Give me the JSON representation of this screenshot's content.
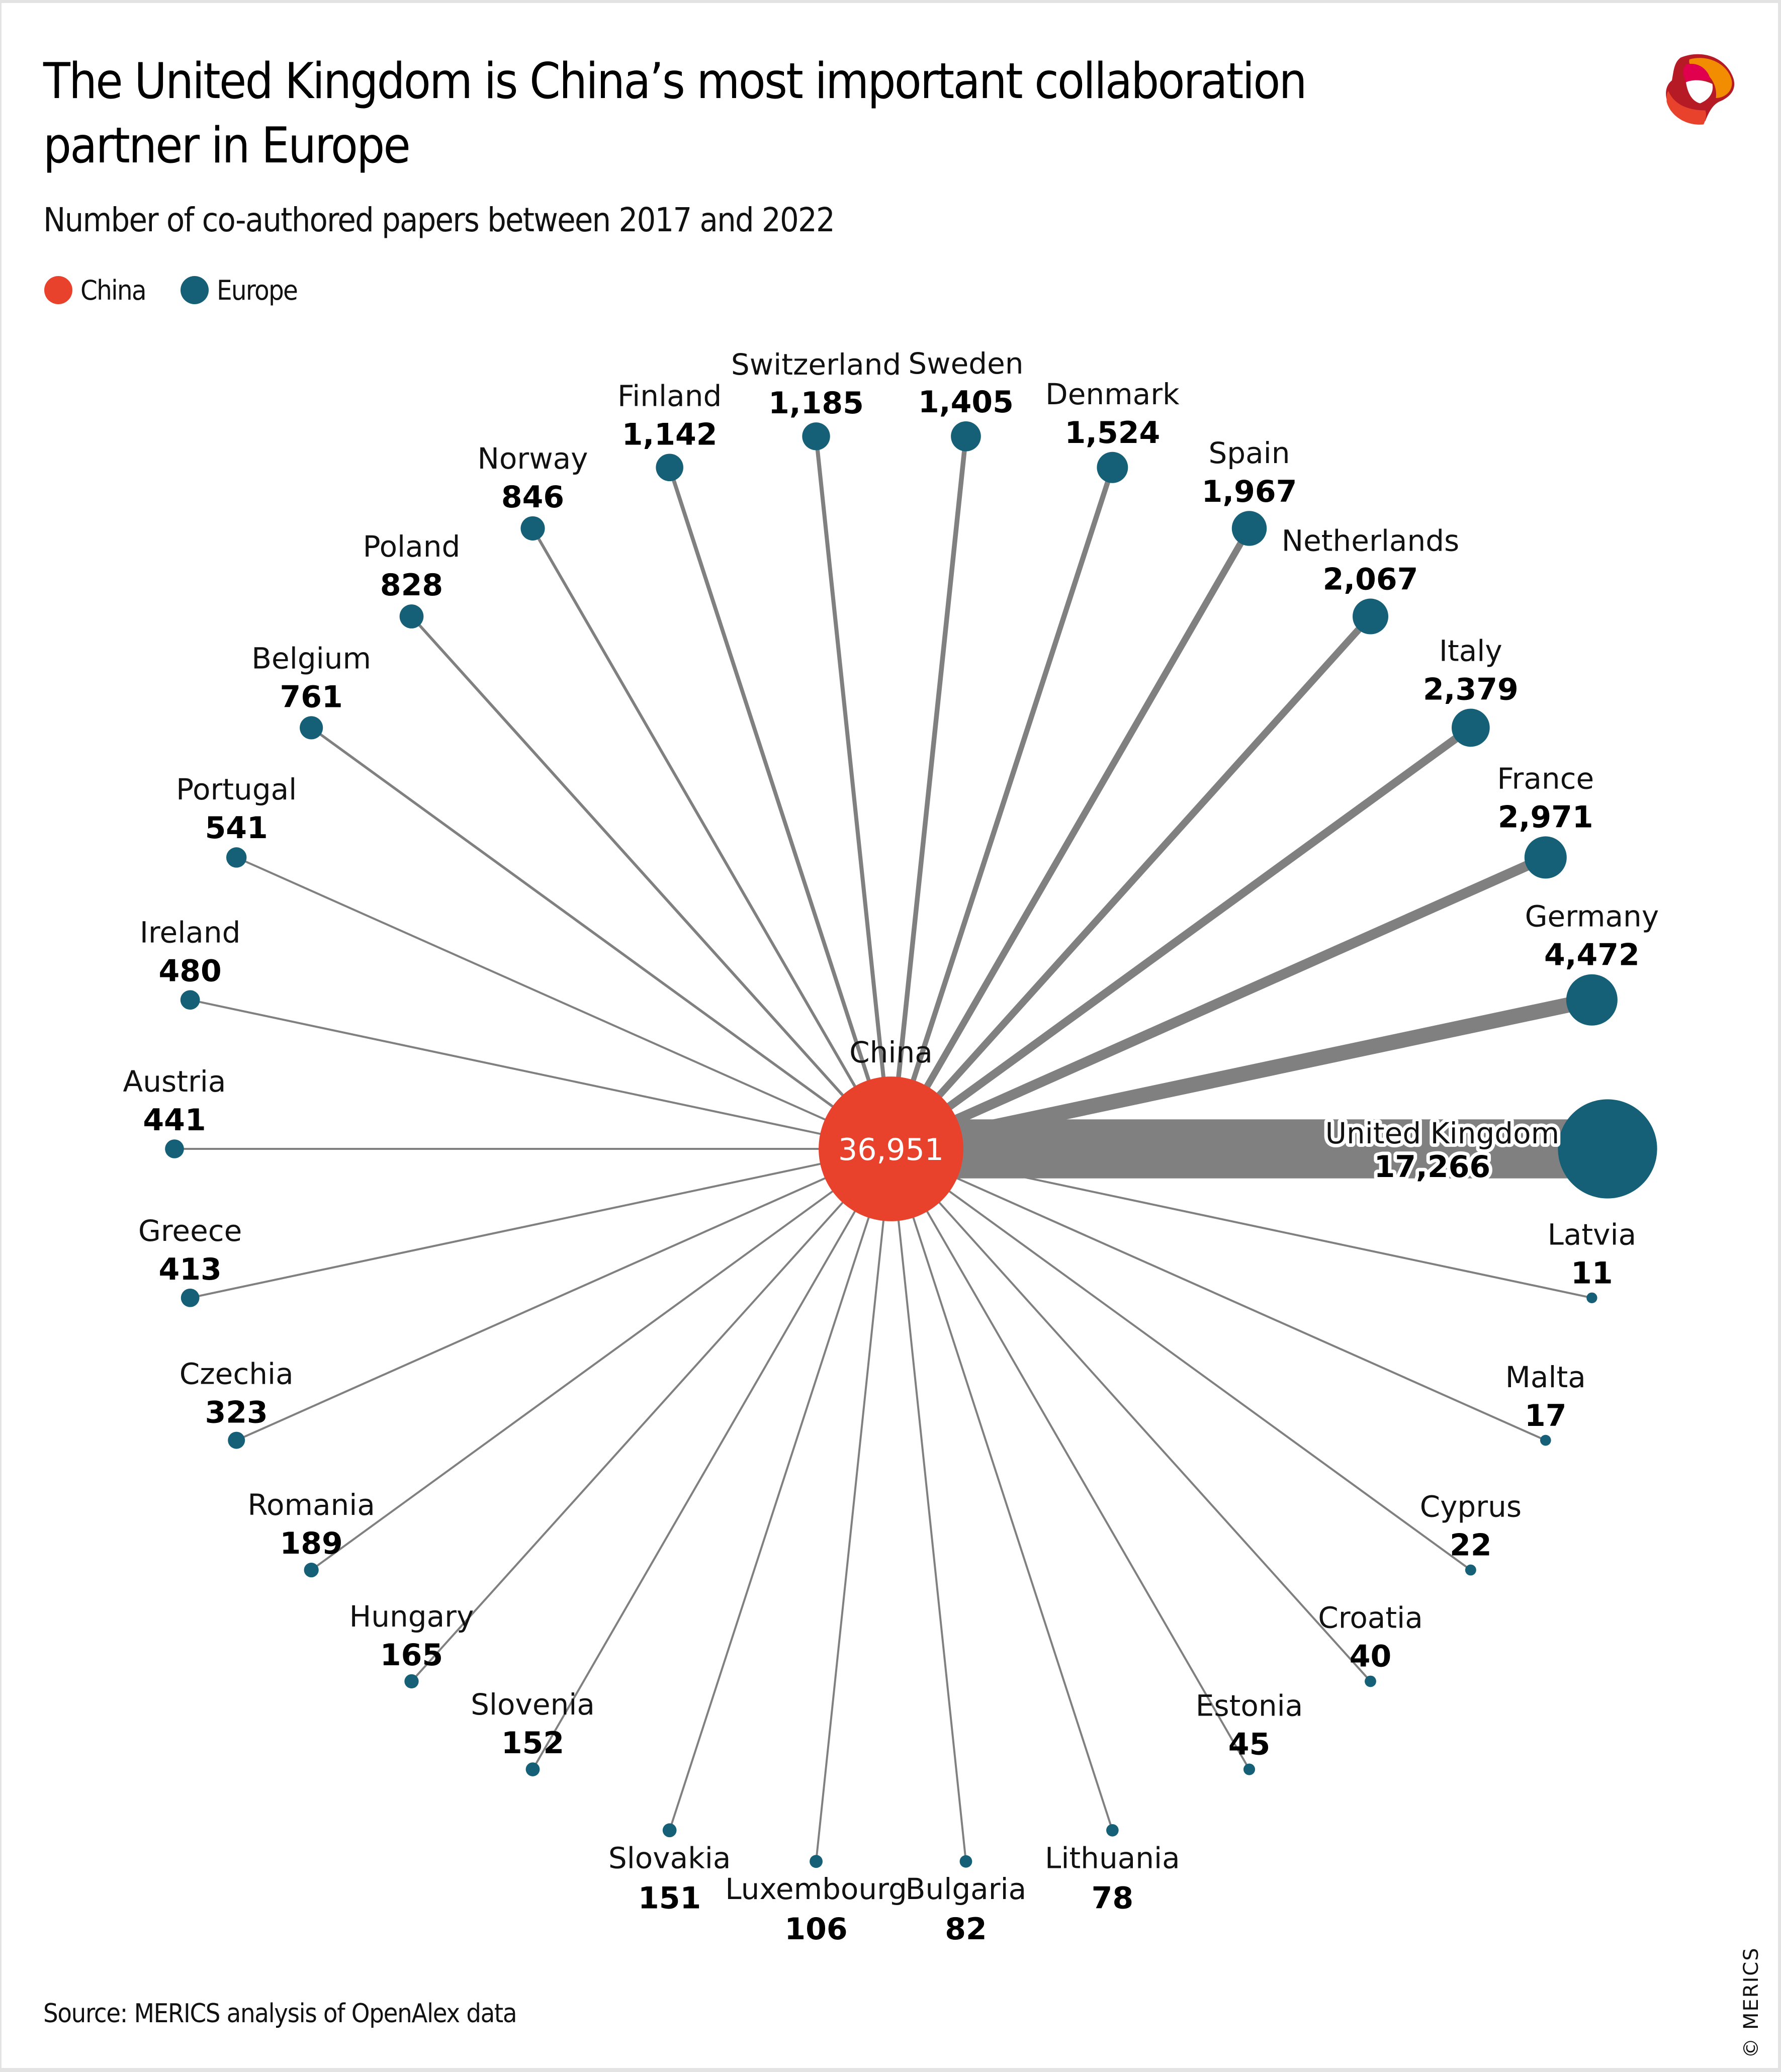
{
  "title": "The United Kingdom is China’s most important collaboration partner in Europe",
  "subtitle": "Number of co-authored papers between 2017 and 2022",
  "legend": [
    {
      "label": "China",
      "color": "#e8412c"
    },
    {
      "label": "Europe",
      "color": "#156077"
    }
  ],
  "source": "Source: MERICS analysis of OpenAlex data",
  "copyright": "© MERICS",
  "logo": {
    "name": "merics-logo",
    "colors": [
      "#b51a25",
      "#e0004d",
      "#f28c00",
      "#e8412c"
    ]
  },
  "colors": {
    "china": "#e8412c",
    "europe": "#156077",
    "edge": "#808080",
    "text": "#000000"
  },
  "chart_data": {
    "type": "network",
    "title": "The United Kingdom is China’s most important collaboration partner in Europe",
    "subtitle": "Number of co-authored papers between 2017 and 2022",
    "layout": "radial, clockwise order starting at right (east) going counter-clockwise",
    "center": {
      "name": "China",
      "value": 36951,
      "value_label": "36,951"
    },
    "nodes": [
      {
        "name": "United Kingdom",
        "value": 17266,
        "value_label": "17,266"
      },
      {
        "name": "Germany",
        "value": 4472,
        "value_label": "4,472"
      },
      {
        "name": "France",
        "value": 2971,
        "value_label": "2,971"
      },
      {
        "name": "Italy",
        "value": 2379,
        "value_label": "2,379"
      },
      {
        "name": "Netherlands",
        "value": 2067,
        "value_label": "2,067"
      },
      {
        "name": "Spain",
        "value": 1967,
        "value_label": "1,967"
      },
      {
        "name": "Denmark",
        "value": 1524,
        "value_label": "1,524"
      },
      {
        "name": "Sweden",
        "value": 1405,
        "value_label": "1,405"
      },
      {
        "name": "Switzerland",
        "value": 1185,
        "value_label": "1,185"
      },
      {
        "name": "Finland",
        "value": 1142,
        "value_label": "1,142"
      },
      {
        "name": "Norway",
        "value": 846,
        "value_label": "846"
      },
      {
        "name": "Poland",
        "value": 828,
        "value_label": "828"
      },
      {
        "name": "Belgium",
        "value": 761,
        "value_label": "761"
      },
      {
        "name": "Portugal",
        "value": 541,
        "value_label": "541"
      },
      {
        "name": "Ireland",
        "value": 480,
        "value_label": "480"
      },
      {
        "name": "Austria",
        "value": 441,
        "value_label": "441"
      },
      {
        "name": "Greece",
        "value": 413,
        "value_label": "413"
      },
      {
        "name": "Czechia",
        "value": 323,
        "value_label": "323"
      },
      {
        "name": "Romania",
        "value": 189,
        "value_label": "189"
      },
      {
        "name": "Hungary",
        "value": 165,
        "value_label": "165"
      },
      {
        "name": "Slovenia",
        "value": 152,
        "value_label": "152"
      },
      {
        "name": "Slovakia",
        "value": 151,
        "value_label": "151"
      },
      {
        "name": "Luxembourg",
        "value": 106,
        "value_label": "106"
      },
      {
        "name": "Bulgaria",
        "value": 82,
        "value_label": "82"
      },
      {
        "name": "Lithuania",
        "value": 78,
        "value_label": "78"
      },
      {
        "name": "Estonia",
        "value": 45,
        "value_label": "45"
      },
      {
        "name": "Croatia",
        "value": 40,
        "value_label": "40"
      },
      {
        "name": "Cyprus",
        "value": 22,
        "value_label": "22"
      },
      {
        "name": "Malta",
        "value": 17,
        "value_label": "17"
      },
      {
        "name": "Latvia",
        "value": 11,
        "value_label": "11"
      }
    ],
    "legend": [
      "China",
      "Europe"
    ],
    "legend_placement": "top-left"
  }
}
